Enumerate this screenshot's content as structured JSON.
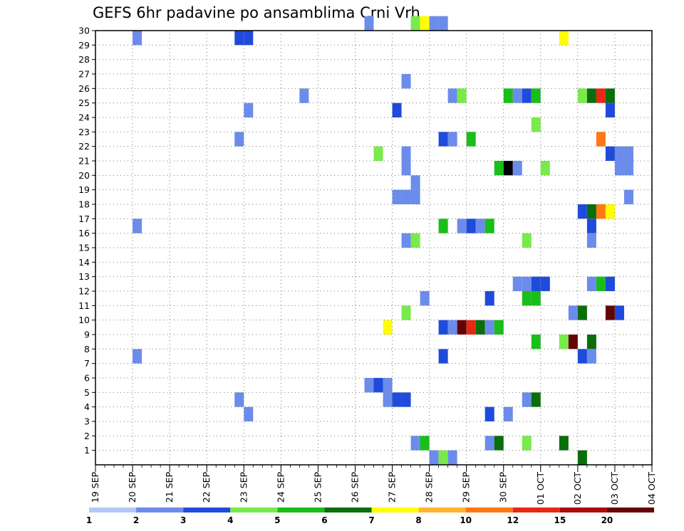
{
  "chart_data": {
    "type": "heatmap",
    "title": "GEFS 6hr padavine po ansamblima Crni Vrh",
    "xlabel": "",
    "ylabel": "",
    "y_ticks": [
      1,
      2,
      3,
      4,
      5,
      6,
      7,
      8,
      9,
      10,
      11,
      12,
      13,
      14,
      15,
      16,
      17,
      18,
      19,
      20,
      21,
      22,
      23,
      24,
      25,
      26,
      27,
      28,
      29,
      30
    ],
    "ylim": [
      0,
      30
    ],
    "x_ticks": [
      "19 SEP",
      "20 SEP",
      "21 SEP",
      "22 SEP",
      "23 SEP",
      "24 SEP",
      "25 SEP",
      "26 SEP",
      "27 SEP",
      "28 SEP",
      "29 SEP",
      "30 SEP",
      "01 OCT",
      "02 OCT",
      "03 OCT",
      "04 OCT"
    ],
    "x_steps_per_day": 4,
    "grid": true,
    "legend_placement": "bottom",
    "legend_labels": [
      "1",
      "2",
      "3",
      "4",
      "5",
      "6",
      "7",
      "8",
      "10",
      "12",
      "15",
      "20"
    ],
    "colors": [
      "#b4c8f5",
      "#6c8ceb",
      "#1e4bdc",
      "#78eb4b",
      "#19be19",
      "#0a6e0a",
      "#ffff00",
      "#ffb432",
      "#ff7814",
      "#e62814",
      "#aa0a0a",
      "#640505"
    ],
    "cells": [
      [
        29,
        30,
        1
      ],
      [
        34,
        30,
        3
      ],
      [
        35,
        30,
        6
      ],
      [
        36,
        30,
        1
      ],
      [
        37,
        30,
        1
      ],
      [
        4,
        29,
        1
      ],
      [
        15,
        29,
        2
      ],
      [
        16,
        29,
        2
      ],
      [
        50,
        29,
        6
      ],
      [
        33,
        26,
        1
      ],
      [
        22,
        25,
        1
      ],
      [
        52,
        25,
        3
      ],
      [
        53,
        25,
        5
      ],
      [
        54,
        25,
        9
      ],
      [
        55,
        25,
        5
      ],
      [
        38,
        25,
        1
      ],
      [
        39,
        25,
        3
      ],
      [
        44,
        25,
        4
      ],
      [
        45,
        25,
        1
      ],
      [
        46,
        25,
        2
      ],
      [
        47,
        25,
        4
      ],
      [
        16,
        24,
        1
      ],
      [
        55,
        24,
        2
      ],
      [
        32,
        24,
        2
      ],
      [
        47,
        23,
        3
      ],
      [
        15,
        22,
        1
      ],
      [
        54,
        22,
        8
      ],
      [
        37,
        22,
        2
      ],
      [
        38,
        22,
        1
      ],
      [
        40,
        22,
        4
      ],
      [
        55,
        21,
        2
      ],
      [
        56,
        21,
        1
      ],
      [
        57,
        21,
        1
      ],
      [
        30,
        21,
        3
      ],
      [
        33,
        21,
        1
      ],
      [
        48,
        20,
        3
      ],
      [
        56,
        20,
        1
      ],
      [
        57,
        20,
        1
      ],
      [
        33,
        20,
        1
      ],
      [
        43,
        20,
        4
      ],
      [
        44,
        20,
        12
      ],
      [
        45,
        20,
        1
      ],
      [
        34,
        19,
        1
      ],
      [
        57,
        18,
        1
      ],
      [
        32,
        18,
        1
      ],
      [
        33,
        18,
        1
      ],
      [
        34,
        18,
        1
      ],
      [
        52,
        17,
        2
      ],
      [
        53,
        17,
        5
      ],
      [
        54,
        17,
        8
      ],
      [
        55,
        17,
        6
      ],
      [
        4,
        16,
        1
      ],
      [
        53,
        16,
        2
      ],
      [
        37,
        16,
        4
      ],
      [
        39,
        16,
        1
      ],
      [
        40,
        16,
        2
      ],
      [
        41,
        16,
        1
      ],
      [
        42,
        16,
        4
      ],
      [
        53,
        15,
        1
      ],
      [
        33,
        15,
        1
      ],
      [
        34,
        15,
        3
      ],
      [
        46,
        15,
        3
      ],
      [
        45,
        12,
        1
      ],
      [
        46,
        12,
        1
      ],
      [
        47,
        12,
        2
      ],
      [
        48,
        12,
        2
      ],
      [
        53,
        12,
        1
      ],
      [
        54,
        12,
        4
      ],
      [
        55,
        12,
        2
      ],
      [
        35,
        11,
        1
      ],
      [
        42,
        11,
        2
      ],
      [
        46,
        11,
        4
      ],
      [
        47,
        11,
        4
      ],
      [
        51,
        10,
        1
      ],
      [
        52,
        10,
        5
      ],
      [
        55,
        10,
        11
      ],
      [
        56,
        10,
        2
      ],
      [
        33,
        10,
        3
      ],
      [
        37,
        9,
        2
      ],
      [
        38,
        9,
        1
      ],
      [
        39,
        9,
        11
      ],
      [
        40,
        9,
        9
      ],
      [
        41,
        9,
        5
      ],
      [
        42,
        9,
        1
      ],
      [
        43,
        9,
        4
      ],
      [
        31,
        9,
        6
      ],
      [
        50,
        8,
        3
      ],
      [
        51,
        8,
        11
      ],
      [
        53,
        8,
        5
      ],
      [
        47,
        8,
        4
      ],
      [
        4,
        7,
        1
      ],
      [
        37,
        7,
        2
      ],
      [
        52,
        7,
        2
      ],
      [
        53,
        7,
        1
      ],
      [
        29,
        5,
        1
      ],
      [
        30,
        5,
        2
      ],
      [
        31,
        5,
        1
      ],
      [
        15,
        4,
        1
      ],
      [
        31,
        4,
        1
      ],
      [
        32,
        4,
        2
      ],
      [
        33,
        4,
        2
      ],
      [
        46,
        4,
        1
      ],
      [
        47,
        4,
        5
      ],
      [
        16,
        3,
        1
      ],
      [
        42,
        3,
        2
      ],
      [
        44,
        3,
        1
      ],
      [
        50,
        1,
        5
      ],
      [
        34,
        1,
        1
      ],
      [
        35,
        1,
        4
      ],
      [
        42,
        1,
        1
      ],
      [
        43,
        1,
        5
      ],
      [
        46,
        1,
        3
      ],
      [
        52,
        0,
        5
      ],
      [
        36,
        0,
        1
      ],
      [
        37,
        0,
        3
      ],
      [
        38,
        0,
        1
      ]
    ]
  }
}
